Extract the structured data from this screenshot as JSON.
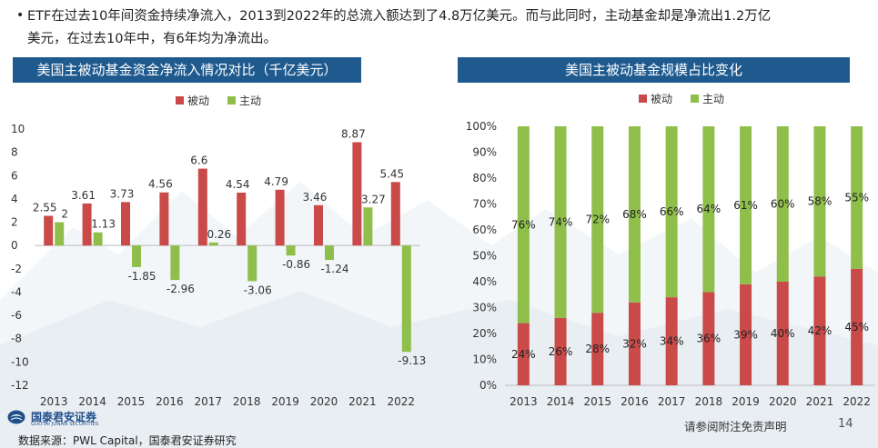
{
  "bullet": {
    "line1": "ETF在过去10年间资金持续净流入，2013到2022年的总流入额达到了4.8万亿美元。而与此同时，主动基金却是净流出1.2万亿",
    "line2": "美元，在过去10年中，有6年均为净流出。"
  },
  "colors": {
    "title_bar": "#1f5a8f",
    "passive": "#c94a48",
    "active": "#8fbf4a"
  },
  "chart_data": [
    {
      "type": "bar",
      "title": "美国主被动基金资金净流入情况对比（千亿美元）",
      "categories": [
        "2013",
        "2014",
        "2015",
        "2016",
        "2017",
        "2018",
        "2019",
        "2020",
        "2021",
        "2022"
      ],
      "series": [
        {
          "name": "被动",
          "values": [
            2.55,
            3.61,
            3.73,
            4.56,
            6.6,
            4.54,
            4.79,
            3.46,
            8.87,
            5.45
          ]
        },
        {
          "name": "主动",
          "values": [
            2,
            1.13,
            -1.85,
            -2.96,
            0.26,
            -3.06,
            -0.86,
            -1.24,
            3.27,
            -9.13
          ]
        }
      ],
      "ylim": [
        -12,
        10
      ],
      "yticks": [
        "10",
        "8",
        "6",
        "4",
        "2",
        "0",
        "-2",
        "-4",
        "-6",
        "-8",
        "-10",
        "-12"
      ],
      "legend": "top-center"
    },
    {
      "type": "bar",
      "stacked": true,
      "title": "美国主被动基金规模占比变化",
      "categories": [
        "2013",
        "2014",
        "2015",
        "2016",
        "2017",
        "2018",
        "2019",
        "2020",
        "2021",
        "2022"
      ],
      "series": [
        {
          "name": "被动",
          "values": [
            24,
            26,
            28,
            32,
            34,
            36,
            39,
            40,
            42,
            45
          ],
          "labels": [
            "24%",
            "26%",
            "28%",
            "32%",
            "34%",
            "36%",
            "39%",
            "40%",
            "42%",
            "45%"
          ]
        },
        {
          "name": "主动",
          "values": [
            76,
            74,
            72,
            68,
            66,
            64,
            61,
            60,
            58,
            55
          ],
          "labels": [
            "76%",
            "74%",
            "72%",
            "68%",
            "66%",
            "64%",
            "61%",
            "60%",
            "58%",
            "55%"
          ]
        }
      ],
      "ylim": [
        0,
        100
      ],
      "yticks": [
        "100%",
        "90%",
        "80%",
        "70%",
        "60%",
        "50%",
        "40%",
        "30%",
        "20%",
        "10%",
        "0%"
      ],
      "legend": "top-center"
    }
  ],
  "footer": {
    "logo_name": "国泰君安证券",
    "logo_sub": "GUOTAI JUNAN SECURITIES",
    "source": "数据来源：PWL Capital，国泰君安证券研究",
    "disclaimer": "请参阅附注免责声明",
    "page_number": "14"
  }
}
